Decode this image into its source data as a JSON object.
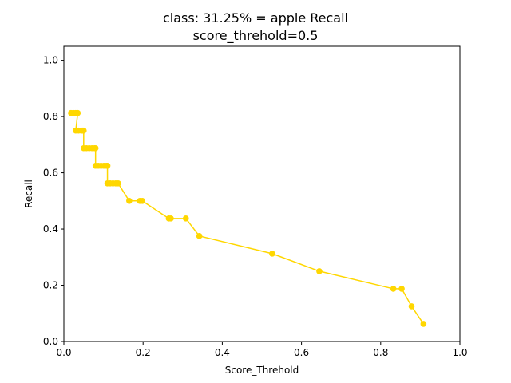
{
  "chart_data": {
    "type": "line",
    "title_line1": "class: 31.25% = apple Recall",
    "title_line2": "score_threhold=0.5",
    "xlabel": "Score_Threhold",
    "ylabel": "Recall",
    "xlim": [
      0.0,
      1.0
    ],
    "ylim": [
      0.0,
      1.05
    ],
    "xticks": [
      0.0,
      0.2,
      0.4,
      0.6,
      0.8,
      1.0
    ],
    "yticks": [
      0.0,
      0.2,
      0.4,
      0.6,
      0.8,
      1.0
    ],
    "xtick_labels": [
      "0.0",
      "0.2",
      "0.4",
      "0.6",
      "0.8",
      "1.0"
    ],
    "ytick_labels": [
      "0.0",
      "0.2",
      "0.4",
      "0.6",
      "0.8",
      "1.0"
    ],
    "grid": false,
    "series": [
      {
        "color": "#ffd700",
        "x": [
          0.018,
          0.024,
          0.03,
          0.035,
          0.03,
          0.037,
          0.044,
          0.047,
          0.05,
          0.05,
          0.057,
          0.064,
          0.071,
          0.077,
          0.08,
          0.08,
          0.087,
          0.094,
          0.101,
          0.107,
          0.11,
          0.11,
          0.117,
          0.124,
          0.131,
          0.137,
          0.165,
          0.192,
          0.198,
          0.265,
          0.27,
          0.308,
          0.342,
          0.526,
          0.645,
          0.832,
          0.853,
          0.878,
          0.908
        ],
        "y": [
          0.8125,
          0.8125,
          0.8125,
          0.8125,
          0.75,
          0.75,
          0.75,
          0.75,
          0.75,
          0.6875,
          0.6875,
          0.6875,
          0.6875,
          0.6875,
          0.6875,
          0.625,
          0.625,
          0.625,
          0.625,
          0.625,
          0.625,
          0.5625,
          0.5625,
          0.5625,
          0.5625,
          0.5625,
          0.5,
          0.5,
          0.5,
          0.4375,
          0.4375,
          0.4375,
          0.375,
          0.3125,
          0.25,
          0.1875,
          0.1875,
          0.125,
          0.0625
        ]
      }
    ]
  }
}
